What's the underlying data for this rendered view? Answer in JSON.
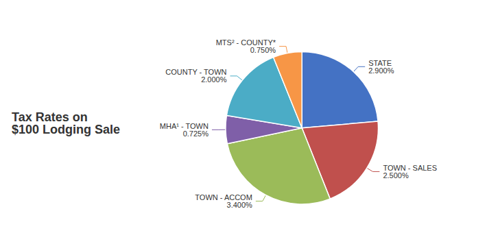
{
  "chart_data": {
    "type": "pie",
    "title": "Tax Rates on\n$100 Lodging Sale",
    "categories": [
      "STATE",
      "TOWN - SALES",
      "TOWN - ACCOM",
      "MHA¹ - TOWN",
      "COUNTY - TOWN",
      "MTS² - COUNTY*"
    ],
    "values": [
      2.9,
      2.5,
      3.4,
      0.725,
      2.0,
      0.75
    ],
    "value_labels": [
      "2.900%",
      "2.500%",
      "3.400%",
      "0.725%",
      "2.000%",
      "0.750%"
    ],
    "colors": [
      "#4472C4",
      "#C0504D",
      "#9BBB59",
      "#7F5FA8",
      "#4BACC6",
      "#F79646"
    ],
    "data_labels": true
  }
}
